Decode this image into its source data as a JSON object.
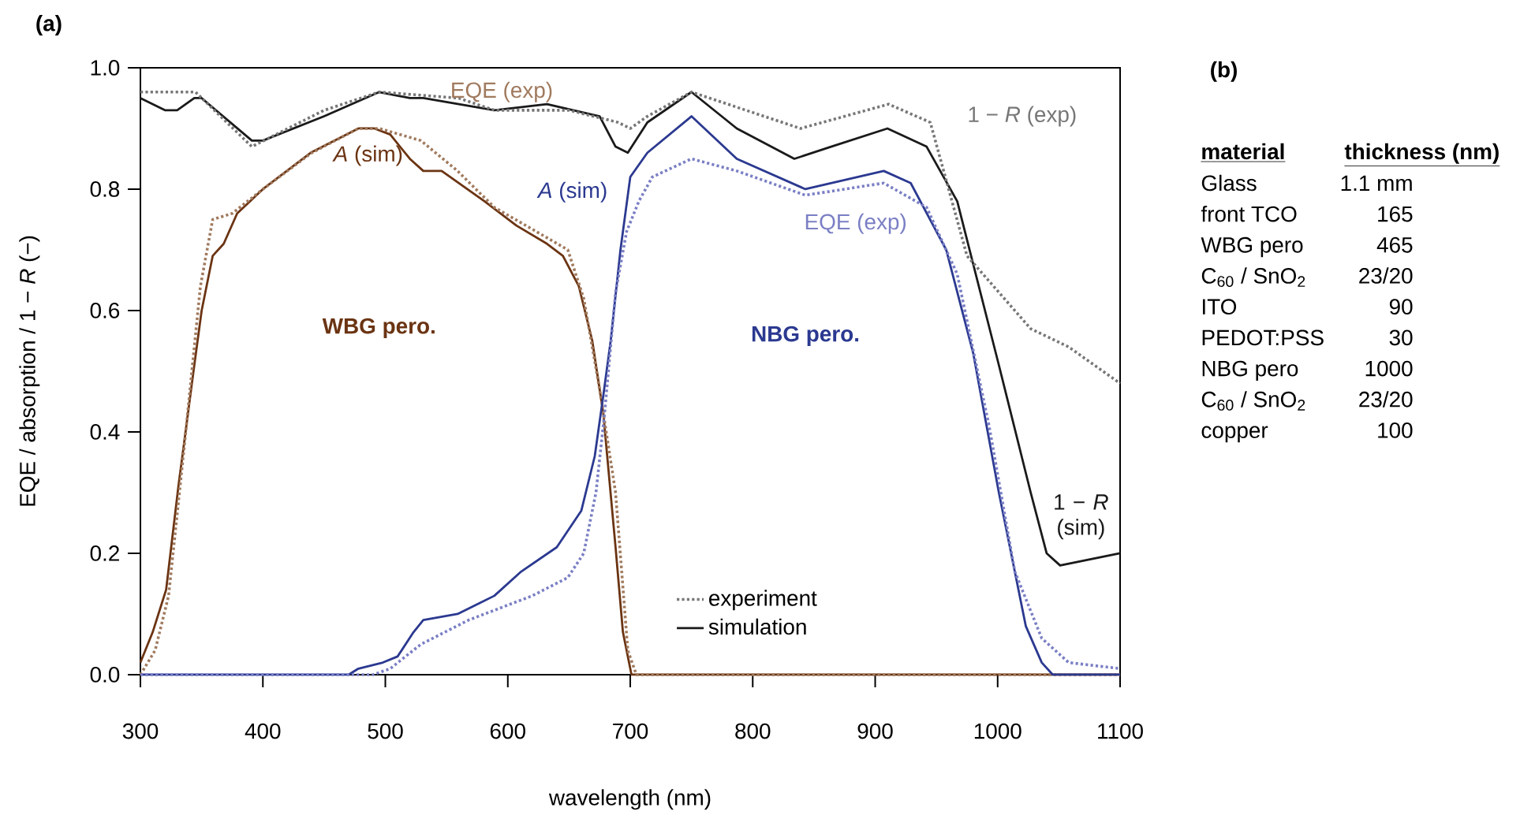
{
  "chart_data": [
    {
      "type": "line",
      "title": "(a)",
      "xlabel": "wavelength (nm)",
      "ylabel": "EQE / absorption / 1 − *R* (−)",
      "xlim": [
        300,
        1100
      ],
      "ylim": [
        0,
        1
      ],
      "xticks": [
        300,
        400,
        500,
        600,
        700,
        800,
        900,
        1000,
        1100
      ],
      "yticks": [
        {
          "value": 0,
          "label": "0.0"
        },
        {
          "value": 0.2,
          "label": "0.2"
        },
        {
          "value": 0.4,
          "label": "0.4"
        },
        {
          "value": 0.6,
          "label": "0.6"
        },
        {
          "value": 0.8,
          "label": "0.8"
        },
        {
          "value": 1,
          "label": "1.0"
        }
      ],
      "annotations": [
        "WBG pero.",
        "NBG pero.",
        "experiment",
        "simulation",
        "*A* (sim)",
        "EQE (exp)",
        "*A* (sim)",
        "EQE (exp)",
        "1 − *R* (sim)",
        "1 − *R* (exp)"
      ],
      "series": [
        {
          "color": "#6b3413",
          "line_style": "solid",
          "x": [
            300,
            310,
            321,
            331,
            344,
            350,
            359,
            368,
            379,
            400,
            439,
            478,
            491,
            504,
            520,
            531,
            546,
            581,
            607,
            632,
            645,
            658,
            669,
            678,
            688,
            694,
            701,
            800,
            1100
          ],
          "values": [
            0.02,
            0.07,
            0.14,
            0.31,
            0.51,
            0.6,
            0.69,
            0.71,
            0.76,
            0.8,
            0.86,
            0.9,
            0.9,
            0.89,
            0.85,
            0.83,
            0.83,
            0.78,
            0.74,
            0.71,
            0.69,
            0.64,
            0.55,
            0.43,
            0.21,
            0.07,
            0,
            0,
            0
          ]
        },
        {
          "color": "#a07a5e",
          "line_style": "dotted",
          "x": [
            300,
            312,
            323,
            336,
            349,
            359,
            375,
            400,
            440,
            478,
            495,
            529,
            559,
            589,
            632,
            649,
            662,
            675,
            688,
            698,
            705,
            800,
            1100
          ],
          "values": [
            0,
            0.04,
            0.13,
            0.38,
            0.64,
            0.75,
            0.76,
            0.8,
            0.86,
            0.9,
            0.9,
            0.88,
            0.83,
            0.77,
            0.72,
            0.7,
            0.62,
            0.47,
            0.3,
            0.04,
            0,
            0,
            0
          ]
        },
        {
          "color": "#2b3990",
          "line_style": "solid",
          "x": [
            300,
            470,
            478,
            498,
            510,
            523,
            531,
            559,
            589,
            611,
            640,
            660,
            671,
            678,
            684,
            692,
            700,
            714,
            750,
            787,
            843,
            907,
            929,
            958,
            980,
            1001,
            1023,
            1036,
            1045,
            1100
          ],
          "values": [
            0,
            0,
            0.01,
            0.02,
            0.03,
            0.07,
            0.09,
            0.1,
            0.13,
            0.17,
            0.21,
            0.27,
            0.36,
            0.46,
            0.55,
            0.7,
            0.82,
            0.86,
            0.92,
            0.85,
            0.8,
            0.83,
            0.81,
            0.7,
            0.53,
            0.3,
            0.08,
            0.02,
            0,
            0
          ]
        },
        {
          "color": "#7a7fc4",
          "line_style": "dotted",
          "x": [
            300,
            490,
            504,
            529,
            568,
            620,
            649,
            662,
            672,
            679,
            688,
            697,
            707,
            718,
            750,
            787,
            843,
            907,
            942,
            967,
            993,
            1014,
            1036,
            1058,
            1100
          ],
          "values": [
            0,
            0,
            0.01,
            0.05,
            0.09,
            0.13,
            0.16,
            0.2,
            0.3,
            0.43,
            0.63,
            0.73,
            0.78,
            0.82,
            0.85,
            0.83,
            0.79,
            0.81,
            0.77,
            0.66,
            0.41,
            0.17,
            0.06,
            0.02,
            0.01
          ]
        },
        {
          "color": "#1a1a1a",
          "line_style": "solid",
          "x": [
            300,
            320,
            330,
            344,
            350,
            391,
            400,
            450,
            495,
            520,
            531,
            589,
            632,
            675,
            688,
            698,
            714,
            750,
            787,
            834,
            864,
            910,
            942,
            967,
            1001,
            1027,
            1040,
            1051,
            1100
          ],
          "values": [
            0.95,
            0.93,
            0.93,
            0.95,
            0.95,
            0.88,
            0.88,
            0.92,
            0.96,
            0.95,
            0.95,
            0.93,
            0.94,
            0.92,
            0.87,
            0.86,
            0.91,
            0.96,
            0.9,
            0.85,
            0.87,
            0.9,
            0.87,
            0.78,
            0.51,
            0.3,
            0.2,
            0.18,
            0.2
          ]
        },
        {
          "color": "#777777",
          "line_style": "dotted",
          "x": [
            300,
            331,
            345,
            391,
            450,
            495,
            560,
            589,
            650,
            690,
            700,
            714,
            750,
            839,
            911,
            945,
            975,
            1001,
            1027,
            1058,
            1100
          ],
          "values": [
            0.96,
            0.96,
            0.96,
            0.87,
            0.93,
            0.96,
            0.95,
            0.93,
            0.93,
            0.91,
            0.9,
            0.92,
            0.96,
            0.9,
            0.94,
            0.91,
            0.69,
            0.63,
            0.57,
            0.54,
            0.48
          ]
        }
      ]
    },
    {
      "type": "other",
      "title": "(b)",
      "annotations": [
        "material",
        "thickness (nm)",
        "Glass",
        "1.1 mm",
        "front TCO",
        "165",
        "WBG pero",
        "465",
        "C$_{60}$ / SnO$_{2}$",
        "23/20",
        "ITO",
        "90",
        "PEDOT:PSS",
        "30",
        "NBG pero",
        "1000",
        "C$_{60}$ / SnO$_{2}$",
        "23/20",
        "copper",
        "100"
      ]
    }
  ]
}
